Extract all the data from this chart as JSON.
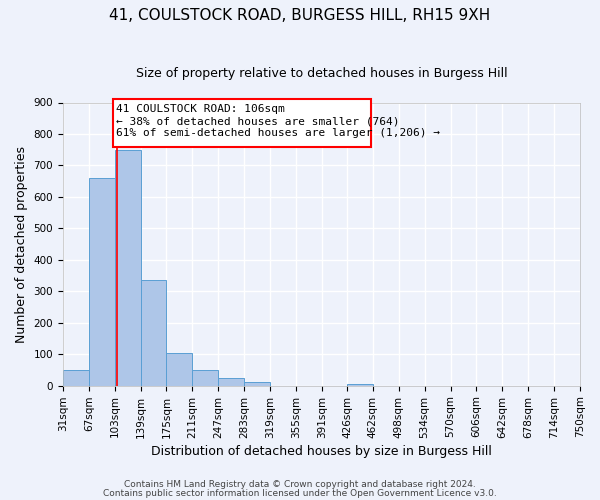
{
  "title": "41, COULSTOCK ROAD, BURGESS HILL, RH15 9XH",
  "subtitle": "Size of property relative to detached houses in Burgess Hill",
  "xlabel": "Distribution of detached houses by size in Burgess Hill",
  "ylabel": "Number of detached properties",
  "bin_edges": [
    31,
    67,
    103,
    139,
    175,
    211,
    247,
    283,
    319,
    355,
    391,
    426,
    462,
    498,
    534,
    570,
    606,
    642,
    678,
    714,
    750
  ],
  "bin_labels": [
    "31sqm",
    "67sqm",
    "103sqm",
    "139sqm",
    "175sqm",
    "211sqm",
    "247sqm",
    "283sqm",
    "319sqm",
    "355sqm",
    "391sqm",
    "426sqm",
    "462sqm",
    "498sqm",
    "534sqm",
    "570sqm",
    "606sqm",
    "642sqm",
    "678sqm",
    "714sqm",
    "750sqm"
  ],
  "bar_heights": [
    50,
    660,
    750,
    335,
    105,
    50,
    25,
    12,
    0,
    0,
    0,
    5,
    0,
    0,
    0,
    0,
    0,
    0,
    0,
    0
  ],
  "bar_color": "#aec6e8",
  "bar_edge_color": "#5a9fd4",
  "property_line_x": 106,
  "property_line_color": "red",
  "annotation_line1": "41 COULSTOCK ROAD: 106sqm",
  "annotation_line2": "← 38% of detached houses are smaller (764)",
  "annotation_line3": "61% of semi-detached houses are larger (1,206) →",
  "ylim": [
    0,
    900
  ],
  "yticks": [
    0,
    100,
    200,
    300,
    400,
    500,
    600,
    700,
    800,
    900
  ],
  "footnote1": "Contains HM Land Registry data © Crown copyright and database right 2024.",
  "footnote2": "Contains public sector information licensed under the Open Government Licence v3.0.",
  "background_color": "#eef2fb",
  "grid_color": "#ffffff",
  "title_fontsize": 11,
  "subtitle_fontsize": 9,
  "axis_label_fontsize": 9,
  "tick_fontsize": 7.5,
  "footnote_fontsize": 6.5
}
